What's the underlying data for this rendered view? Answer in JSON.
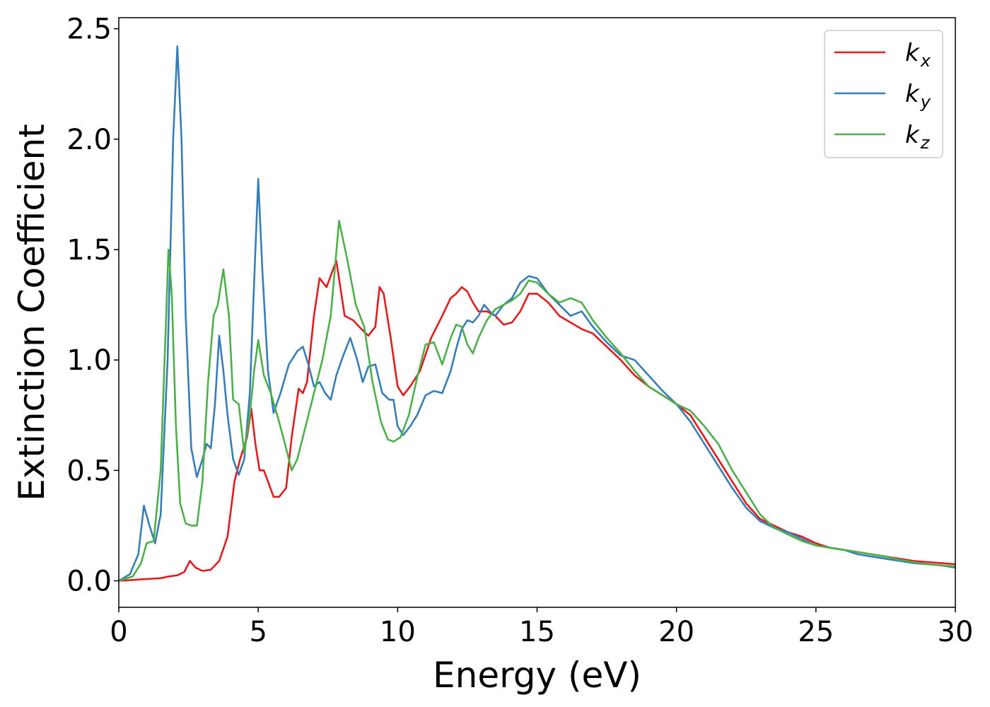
{
  "chart_data": {
    "type": "line",
    "title": "",
    "xlabel": "Energy (eV)",
    "ylabel": "Extinction Coefficient",
    "xlim": [
      0,
      30
    ],
    "ylim": [
      -0.12,
      2.55
    ],
    "xticks": [
      0,
      5,
      10,
      15,
      20,
      25,
      30
    ],
    "xtick_labels": [
      "0",
      "5",
      "10",
      "15",
      "20",
      "25",
      "30"
    ],
    "yticks": [
      0.0,
      0.5,
      1.0,
      1.5,
      2.0,
      2.5
    ],
    "ytick_labels": [
      "0.0",
      "0.5",
      "1.0",
      "1.5",
      "2.0",
      "2.5"
    ],
    "grid": false,
    "legend_position": "top-right",
    "series": [
      {
        "name": "k_x",
        "label_main": "k",
        "label_sub": "x",
        "color": "#e41a1c",
        "x": [
          0,
          0.5,
          1.0,
          1.5,
          1.8,
          2.1,
          2.35,
          2.55,
          2.75,
          3.0,
          3.3,
          3.6,
          3.9,
          4.15,
          4.35,
          4.6,
          4.75,
          4.9,
          5.05,
          5.2,
          5.35,
          5.55,
          5.75,
          6.0,
          6.2,
          6.45,
          6.6,
          6.75,
          7.0,
          7.2,
          7.45,
          7.8,
          8.1,
          8.4,
          8.7,
          8.95,
          9.2,
          9.35,
          9.5,
          9.75,
          10.0,
          10.2,
          10.45,
          10.8,
          11.2,
          11.6,
          11.9,
          12.1,
          12.3,
          12.5,
          12.7,
          12.9,
          13.2,
          13.5,
          13.8,
          14.1,
          14.4,
          14.7,
          15.0,
          15.4,
          15.8,
          16.2,
          16.6,
          17.0,
          17.5,
          18.0,
          18.5,
          19.0,
          19.5,
          20.0,
          20.5,
          21.0,
          21.5,
          22.0,
          22.5,
          23.0,
          23.5,
          24.0,
          24.5,
          25.0,
          25.5,
          26.0,
          26.5,
          27.0,
          27.5,
          28.0,
          28.5,
          29.0,
          29.5,
          30.0
        ],
        "y": [
          0.0,
          0.004,
          0.008,
          0.012,
          0.02,
          0.025,
          0.04,
          0.09,
          0.06,
          0.045,
          0.05,
          0.09,
          0.2,
          0.45,
          0.55,
          0.65,
          0.78,
          0.62,
          0.5,
          0.5,
          0.45,
          0.38,
          0.38,
          0.42,
          0.65,
          0.87,
          0.85,
          0.9,
          1.2,
          1.37,
          1.33,
          1.45,
          1.2,
          1.18,
          1.14,
          1.11,
          1.15,
          1.33,
          1.3,
          1.1,
          0.88,
          0.84,
          0.88,
          0.95,
          1.1,
          1.2,
          1.28,
          1.3,
          1.33,
          1.31,
          1.26,
          1.22,
          1.22,
          1.2,
          1.16,
          1.17,
          1.22,
          1.3,
          1.3,
          1.26,
          1.2,
          1.17,
          1.14,
          1.12,
          1.06,
          1.0,
          0.93,
          0.88,
          0.84,
          0.8,
          0.75,
          0.65,
          0.55,
          0.45,
          0.35,
          0.28,
          0.25,
          0.22,
          0.2,
          0.17,
          0.15,
          0.14,
          0.13,
          0.12,
          0.11,
          0.1,
          0.09,
          0.085,
          0.08,
          0.075
        ]
      },
      {
        "name": "k_y",
        "label_main": "k",
        "label_sub": "y",
        "color": "#377eb8",
        "x": [
          0,
          0.4,
          0.7,
          0.9,
          1.1,
          1.3,
          1.5,
          1.75,
          1.95,
          2.1,
          2.25,
          2.4,
          2.6,
          2.8,
          3.0,
          3.15,
          3.3,
          3.45,
          3.6,
          3.75,
          3.9,
          4.1,
          4.3,
          4.5,
          4.7,
          4.9,
          5.0,
          5.15,
          5.35,
          5.55,
          5.8,
          6.1,
          6.4,
          6.6,
          6.8,
          7.0,
          7.2,
          7.4,
          7.6,
          7.8,
          8.05,
          8.3,
          8.55,
          8.75,
          8.95,
          9.2,
          9.45,
          9.7,
          9.85,
          10.0,
          10.2,
          10.45,
          10.7,
          11.0,
          11.3,
          11.6,
          11.9,
          12.1,
          12.3,
          12.5,
          12.7,
          12.9,
          13.1,
          13.3,
          13.5,
          13.8,
          14.1,
          14.4,
          14.7,
          15.0,
          15.4,
          15.8,
          16.2,
          16.6,
          17.0,
          17.5,
          18.0,
          18.5,
          19.0,
          19.5,
          20.0,
          20.5,
          21.0,
          21.5,
          22.0,
          22.5,
          23.0,
          23.5,
          24.0,
          24.5,
          25.0,
          25.5,
          26.0,
          26.5,
          27.0,
          27.5,
          28.0,
          28.5,
          29.0,
          29.5,
          30.0
        ],
        "y": [
          0.0,
          0.03,
          0.12,
          0.34,
          0.25,
          0.17,
          0.3,
          1.0,
          2.0,
          2.42,
          2.0,
          1.2,
          0.6,
          0.47,
          0.55,
          0.62,
          0.6,
          0.8,
          1.11,
          0.95,
          0.75,
          0.55,
          0.48,
          0.55,
          0.85,
          1.5,
          1.82,
          1.4,
          0.95,
          0.76,
          0.85,
          0.98,
          1.04,
          1.06,
          0.98,
          0.88,
          0.9,
          0.85,
          0.82,
          0.93,
          1.02,
          1.1,
          1.0,
          0.9,
          0.97,
          0.98,
          0.85,
          0.82,
          0.82,
          0.7,
          0.66,
          0.7,
          0.75,
          0.84,
          0.86,
          0.85,
          0.95,
          1.05,
          1.14,
          1.18,
          1.17,
          1.2,
          1.25,
          1.22,
          1.2,
          1.25,
          1.28,
          1.35,
          1.38,
          1.37,
          1.3,
          1.25,
          1.2,
          1.22,
          1.15,
          1.08,
          1.02,
          1.0,
          0.93,
          0.86,
          0.8,
          0.72,
          0.62,
          0.52,
          0.42,
          0.33,
          0.27,
          0.24,
          0.22,
          0.19,
          0.16,
          0.15,
          0.14,
          0.12,
          0.11,
          0.1,
          0.09,
          0.08,
          0.075,
          0.07,
          0.06
        ]
      },
      {
        "name": "k_z",
        "label_main": "k",
        "label_sub": "z",
        "color": "#4daf4a",
        "x": [
          0,
          0.5,
          0.8,
          1.0,
          1.25,
          1.5,
          1.7,
          1.78,
          1.9,
          2.05,
          2.2,
          2.4,
          2.6,
          2.8,
          3.0,
          3.2,
          3.4,
          3.55,
          3.75,
          3.95,
          4.1,
          4.3,
          4.5,
          4.7,
          4.85,
          5.0,
          5.2,
          5.45,
          5.75,
          6.0,
          6.2,
          6.4,
          6.7,
          7.0,
          7.3,
          7.6,
          7.9,
          8.2,
          8.5,
          8.8,
          9.1,
          9.4,
          9.65,
          9.85,
          10.1,
          10.4,
          10.7,
          11.0,
          11.3,
          11.6,
          11.9,
          12.1,
          12.3,
          12.5,
          12.7,
          12.9,
          13.2,
          13.5,
          13.8,
          14.1,
          14.4,
          14.7,
          15.0,
          15.4,
          15.8,
          16.2,
          16.6,
          17.0,
          17.5,
          18.0,
          18.5,
          19.0,
          19.5,
          20.0,
          20.5,
          21.0,
          21.5,
          22.0,
          22.5,
          23.0,
          23.5,
          24.0,
          24.5,
          25.0,
          25.5,
          26.0,
          26.5,
          27.0,
          27.5,
          28.0,
          28.5,
          29.0,
          29.5,
          30.0
        ],
        "y": [
          0.0,
          0.02,
          0.08,
          0.17,
          0.18,
          0.5,
          1.2,
          1.5,
          1.3,
          0.7,
          0.35,
          0.26,
          0.25,
          0.25,
          0.45,
          0.9,
          1.2,
          1.25,
          1.41,
          1.2,
          0.82,
          0.8,
          0.58,
          0.75,
          0.95,
          1.09,
          0.93,
          0.85,
          0.72,
          0.6,
          0.5,
          0.55,
          0.7,
          0.85,
          1.0,
          1.2,
          1.63,
          1.45,
          1.25,
          1.15,
          0.9,
          0.72,
          0.64,
          0.63,
          0.65,
          0.75,
          0.92,
          1.07,
          1.08,
          0.98,
          1.1,
          1.16,
          1.15,
          1.07,
          1.03,
          1.1,
          1.18,
          1.23,
          1.25,
          1.27,
          1.3,
          1.36,
          1.35,
          1.3,
          1.26,
          1.28,
          1.26,
          1.18,
          1.1,
          1.03,
          0.95,
          0.88,
          0.84,
          0.8,
          0.77,
          0.7,
          0.62,
          0.5,
          0.4,
          0.3,
          0.24,
          0.21,
          0.18,
          0.16,
          0.15,
          0.14,
          0.13,
          0.12,
          0.11,
          0.095,
          0.085,
          0.075,
          0.07,
          0.065
        ]
      }
    ]
  }
}
